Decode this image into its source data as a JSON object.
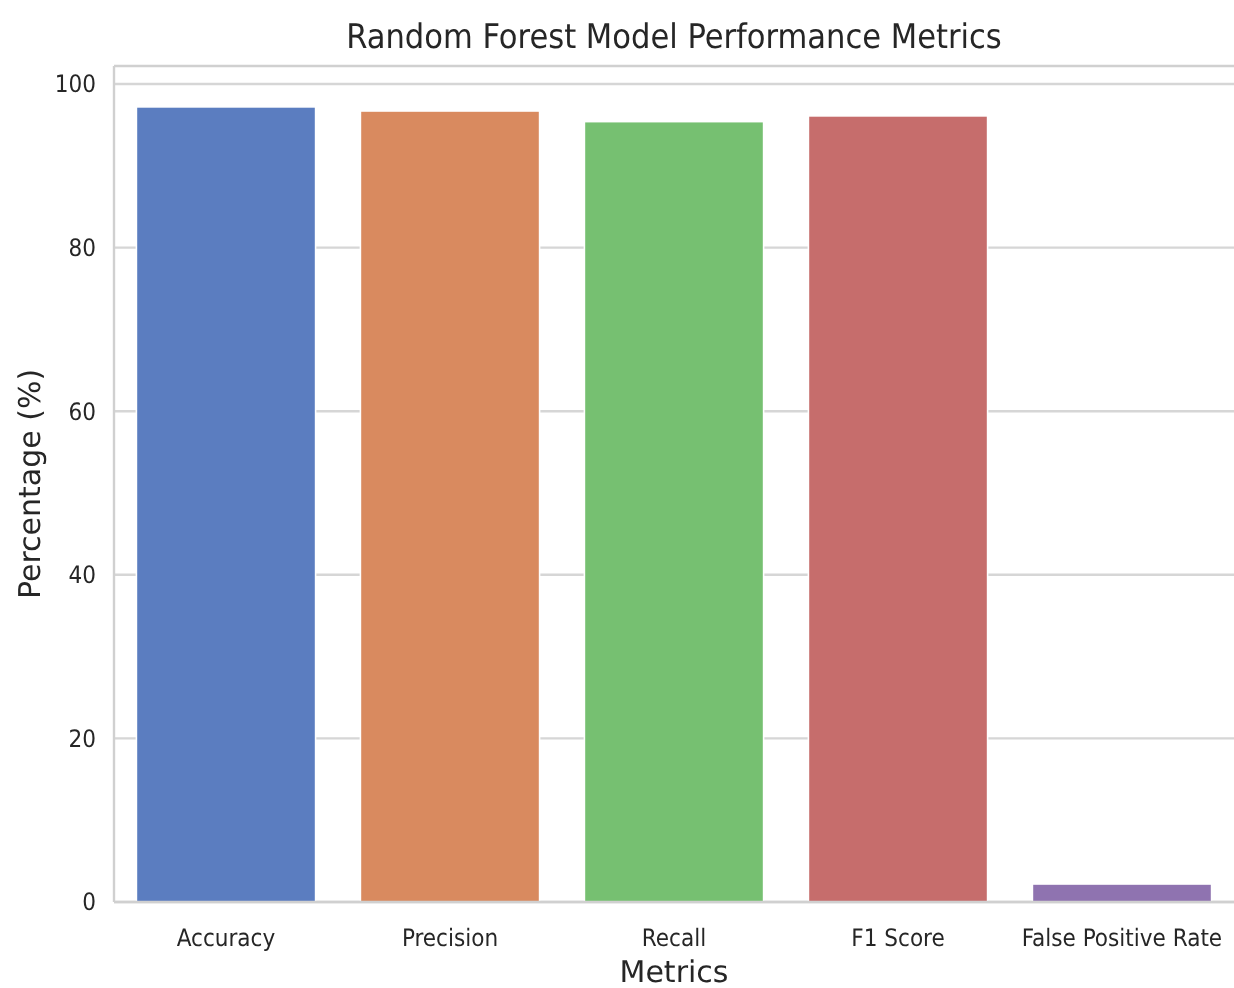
{
  "chart_data": {
    "type": "bar",
    "title": "Random Forest Model Performance Metrics",
    "xlabel": "Metrics",
    "ylabel": "Percentage (%)",
    "categories": [
      "Accuracy",
      "Precision",
      "Recall",
      "F1 Score",
      "False Positive Rate"
    ],
    "values": [
      97.2,
      96.7,
      95.4,
      96.1,
      2.2
    ],
    "colors": [
      "#5b7dc0",
      "#d98a5f",
      "#76c071",
      "#c66d6c",
      "#8f73b0"
    ],
    "ylim": [
      0,
      102.2
    ],
    "yticks": [
      0,
      20,
      40,
      60,
      80,
      100
    ],
    "grid": "y"
  }
}
